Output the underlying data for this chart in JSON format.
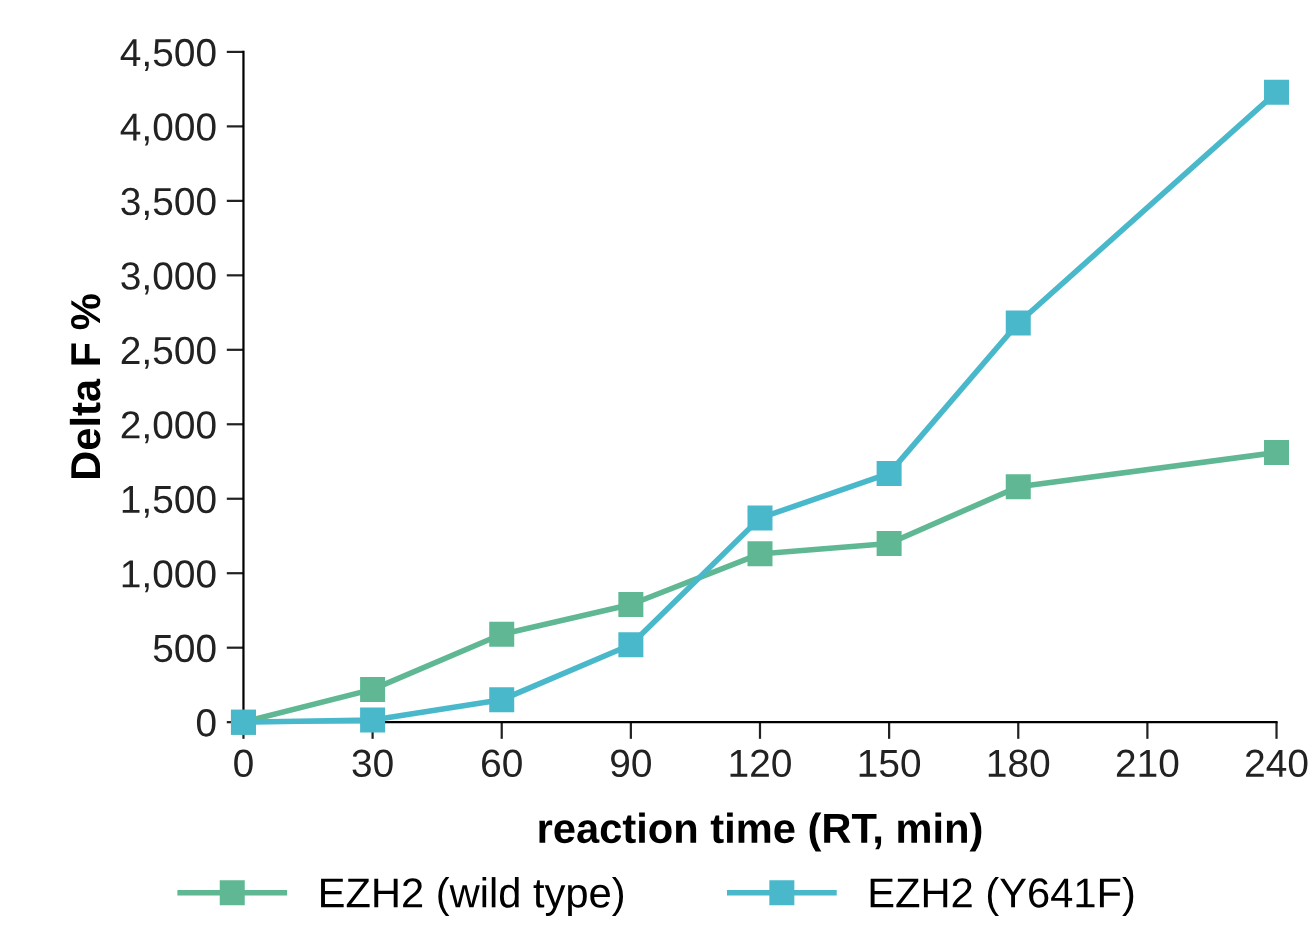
{
  "chart_data": {
    "type": "line",
    "xlabel": "reaction time (RT, min)",
    "ylabel": "Delta F %",
    "x": [
      0,
      30,
      60,
      90,
      120,
      150,
      180,
      240
    ],
    "series": [
      {
        "name": "EZH2 (wild type)",
        "color": "#5fb893",
        "values": [
          0,
          220,
          590,
          790,
          1130,
          1200,
          1580,
          1810
        ]
      },
      {
        "name": "EZH2 (Y641F)",
        "color": "#4ab8cb",
        "values": [
          0,
          15,
          150,
          520,
          1370,
          1670,
          2680,
          4230
        ]
      }
    ],
    "xlim": [
      0,
      240
    ],
    "xticks": [
      0,
      30,
      60,
      90,
      120,
      150,
      180,
      210,
      240
    ],
    "ylim": [
      0,
      4500
    ],
    "yticks": [
      {
        "value": 0,
        "label": "0"
      },
      {
        "value": 500,
        "label": "500"
      },
      {
        "value": 1000,
        "label": "1,000"
      },
      {
        "value": 1500,
        "label": "1,500"
      },
      {
        "value": 2000,
        "label": "2,000"
      },
      {
        "value": 2500,
        "label": "2,500"
      },
      {
        "value": 3000,
        "label": "3,000"
      },
      {
        "value": 3500,
        "label": "3,500"
      },
      {
        "value": 4000,
        "label": "4,000"
      },
      {
        "value": 4500,
        "label": "4,500"
      }
    ],
    "grid": false,
    "legend": "bottom",
    "marker": "square",
    "line_style": "solid"
  }
}
